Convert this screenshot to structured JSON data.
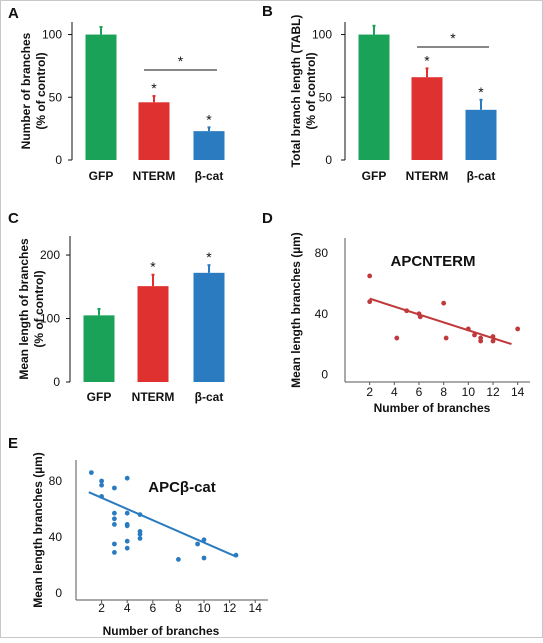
{
  "chart_data": [
    {
      "panel": "A",
      "type": "bar",
      "ylabel": "Number of branches (% of control)",
      "ylabel_lines": [
        "Number of branches",
        "(% of control)"
      ],
      "categories": [
        "GFP",
        "NTERM",
        "β-cat"
      ],
      "values": [
        100,
        46,
        23
      ],
      "errors": [
        6,
        5,
        3
      ],
      "colors": [
        "#1aa358",
        "#e03131",
        "#2a7bc0"
      ],
      "ylim": [
        0,
        110
      ],
      "yticks": [
        0,
        50,
        100
      ],
      "significance": [
        "",
        "*",
        "*"
      ],
      "bracket": {
        "from": 1,
        "to": 2,
        "label": "*"
      }
    },
    {
      "panel": "B",
      "type": "bar",
      "ylabel": "Total branch length (TABL) (% of control)",
      "ylabel_lines": [
        "Total branch length (TABL)",
        "(% of control)"
      ],
      "categories": [
        "GFP",
        "NTERM",
        "β-cat"
      ],
      "values": [
        100,
        66,
        40
      ],
      "errors": [
        7,
        7,
        8
      ],
      "colors": [
        "#1aa358",
        "#e03131",
        "#2a7bc0"
      ],
      "ylim": [
        0,
        110
      ],
      "yticks": [
        0,
        50,
        100
      ],
      "significance": [
        "",
        "*",
        "*"
      ],
      "bracket": {
        "from": 1,
        "to": 2,
        "label": "*"
      }
    },
    {
      "panel": "C",
      "type": "bar",
      "ylabel": "Mean length of branches (% of control)",
      "ylabel_lines": [
        "Mean length of branches",
        "(% of control)"
      ],
      "categories": [
        "GFP",
        "NTERM",
        "β-cat"
      ],
      "values": [
        105,
        151,
        172
      ],
      "errors": [
        10,
        18,
        12
      ],
      "colors": [
        "#1aa358",
        "#e03131",
        "#2a7bc0"
      ],
      "ylim": [
        0,
        230
      ],
      "yticks": [
        0,
        100,
        200
      ],
      "significance": [
        "",
        "*",
        "*"
      ]
    },
    {
      "panel": "D",
      "type": "scatter",
      "title": "APCNTERM",
      "xlabel": "Number of branches",
      "ylabel": "Mean length branches (µm)",
      "xlim": [
        0,
        15
      ],
      "ylim": [
        -5,
        90
      ],
      "xticks": [
        2,
        4,
        6,
        8,
        10,
        12,
        14
      ],
      "yticks": [
        0,
        40,
        80
      ],
      "color": "#c0393b",
      "points": [
        [
          2,
          65
        ],
        [
          2,
          48
        ],
        [
          4.2,
          24
        ],
        [
          5,
          42
        ],
        [
          6,
          40
        ],
        [
          6.1,
          38
        ],
        [
          8,
          47
        ],
        [
          8.2,
          24
        ],
        [
          10,
          30
        ],
        [
          10.5,
          26
        ],
        [
          11,
          22
        ],
        [
          11,
          24
        ],
        [
          12,
          25
        ],
        [
          12,
          22
        ],
        [
          14,
          30
        ]
      ],
      "trend": [
        [
          2,
          50
        ],
        [
          13.5,
          20
        ]
      ]
    },
    {
      "panel": "E",
      "type": "scatter",
      "title": "APCβ-cat",
      "xlabel": "Number of branches",
      "ylabel": "Mean length branches (µm)",
      "xlim": [
        0,
        15
      ],
      "ylim": [
        -5,
        95
      ],
      "xticks": [
        2,
        4,
        6,
        8,
        10,
        12,
        14
      ],
      "yticks": [
        0,
        40,
        80
      ],
      "color": "#2a7bc0",
      "points": [
        [
          1.2,
          86
        ],
        [
          2,
          80
        ],
        [
          2,
          77
        ],
        [
          2,
          69
        ],
        [
          3,
          75
        ],
        [
          3,
          57
        ],
        [
          3,
          53
        ],
        [
          3,
          49
        ],
        [
          3,
          35
        ],
        [
          3,
          29
        ],
        [
          4,
          82
        ],
        [
          4,
          57
        ],
        [
          4,
          49
        ],
        [
          4,
          48
        ],
        [
          4,
          37
        ],
        [
          4,
          32
        ],
        [
          5,
          56
        ],
        [
          5,
          44
        ],
        [
          5,
          42
        ],
        [
          5,
          39
        ],
        [
          8,
          24
        ],
        [
          9.5,
          35
        ],
        [
          10,
          38
        ],
        [
          10,
          25
        ],
        [
          12.5,
          27
        ]
      ],
      "trend": [
        [
          1,
          72
        ],
        [
          12.5,
          26
        ]
      ]
    }
  ]
}
